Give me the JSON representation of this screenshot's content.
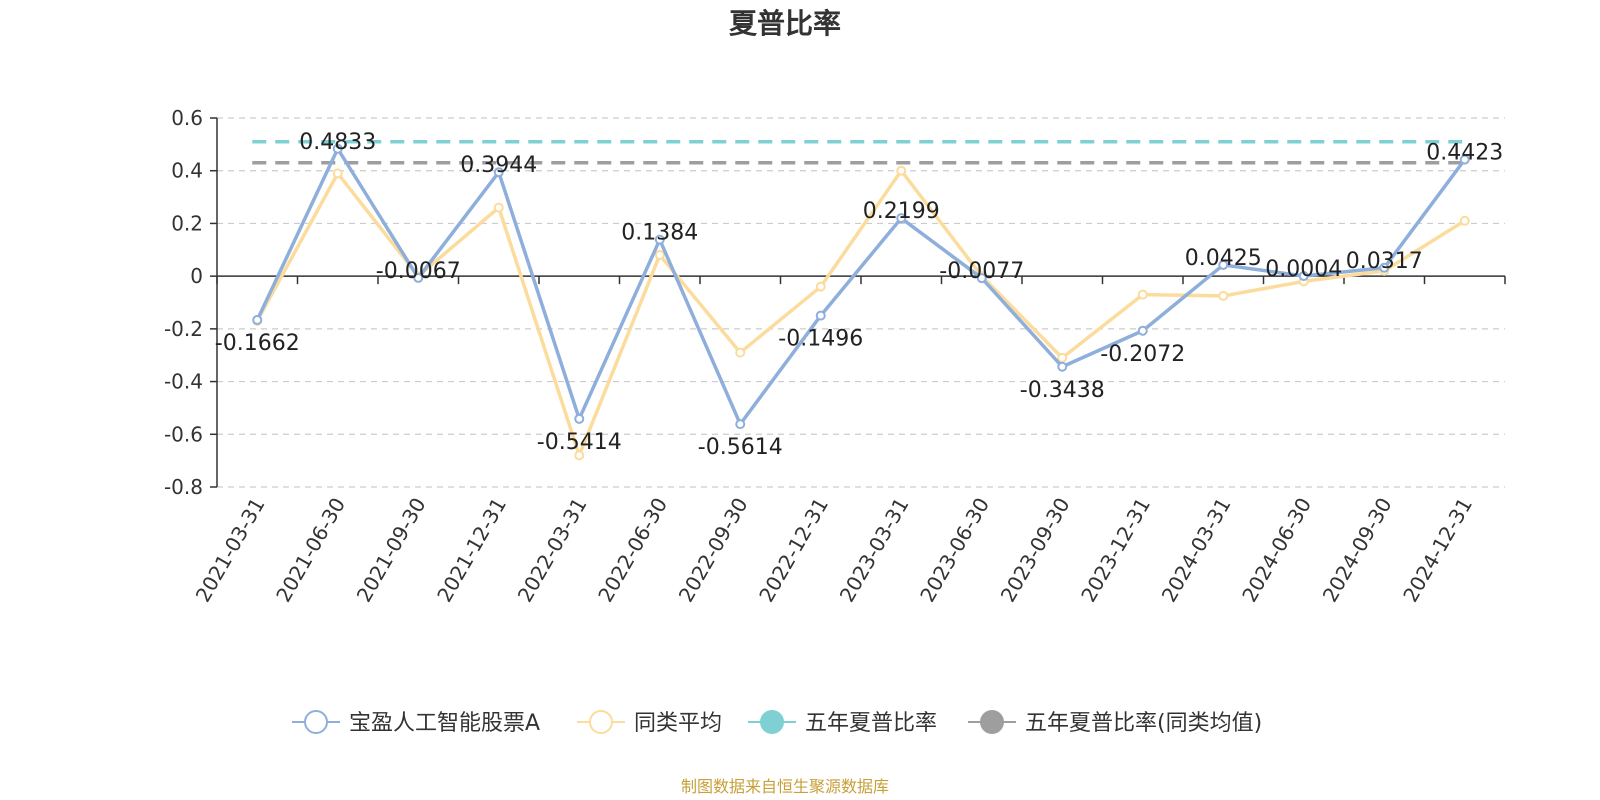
{
  "chart_data": {
    "type": "line",
    "title": "夏普比率",
    "categories": [
      "2021-03-31",
      "2021-06-30",
      "2021-09-30",
      "2021-12-31",
      "2022-03-31",
      "2022-06-30",
      "2022-09-30",
      "2022-12-31",
      "2023-03-31",
      "2023-06-30",
      "2023-09-30",
      "2023-12-31",
      "2024-03-31",
      "2024-06-30",
      "2024-09-30",
      "2024-12-31"
    ],
    "ylim": [
      -0.8,
      0.6
    ],
    "yticks": [
      "0.6",
      "0.4",
      "0.2",
      "0",
      "-0.2",
      "-0.4",
      "-0.6",
      "-0.8"
    ],
    "ytick_values": [
      0.6,
      0.4,
      0.2,
      0,
      -0.2,
      -0.4,
      -0.6,
      -0.8
    ],
    "grid": true,
    "legend_position": "bottom",
    "series": [
      {
        "name": "宝盈人工智能股票A",
        "color": "#8eaedb",
        "values": [
          -0.1662,
          0.4833,
          -0.0067,
          0.3944,
          -0.5414,
          0.1384,
          -0.5614,
          -0.1496,
          0.2199,
          -0.0077,
          -0.3438,
          -0.2072,
          0.0425,
          0.0004,
          0.0317,
          0.4423
        ],
        "labels": [
          "-0.1662",
          "0.4833",
          "-0.0067",
          "0.3944",
          "-0.5414",
          "0.1384",
          "-0.5614",
          "-0.1496",
          "0.2199",
          "-0.0077",
          "-0.3438",
          "-0.2072",
          "0.0425",
          "0.0004",
          "0.0317",
          "0.4423"
        ]
      },
      {
        "name": "同类平均",
        "color": "#fcdc9c",
        "values": [
          -0.17,
          0.39,
          0.0,
          0.26,
          -0.68,
          0.08,
          -0.29,
          -0.04,
          0.4,
          0.0,
          -0.31,
          -0.07,
          -0.075,
          -0.02,
          0.02,
          0.21
        ]
      },
      {
        "name": "五年夏普比率",
        "color": "#7fd0d3",
        "value": 0.51,
        "dashed": true
      },
      {
        "name": "五年夏普比率(同类均值)",
        "color": "#9e9e9e",
        "value": 0.43,
        "dashed": true
      }
    ]
  },
  "source_note": "制图数据来自恒生聚源数据库"
}
